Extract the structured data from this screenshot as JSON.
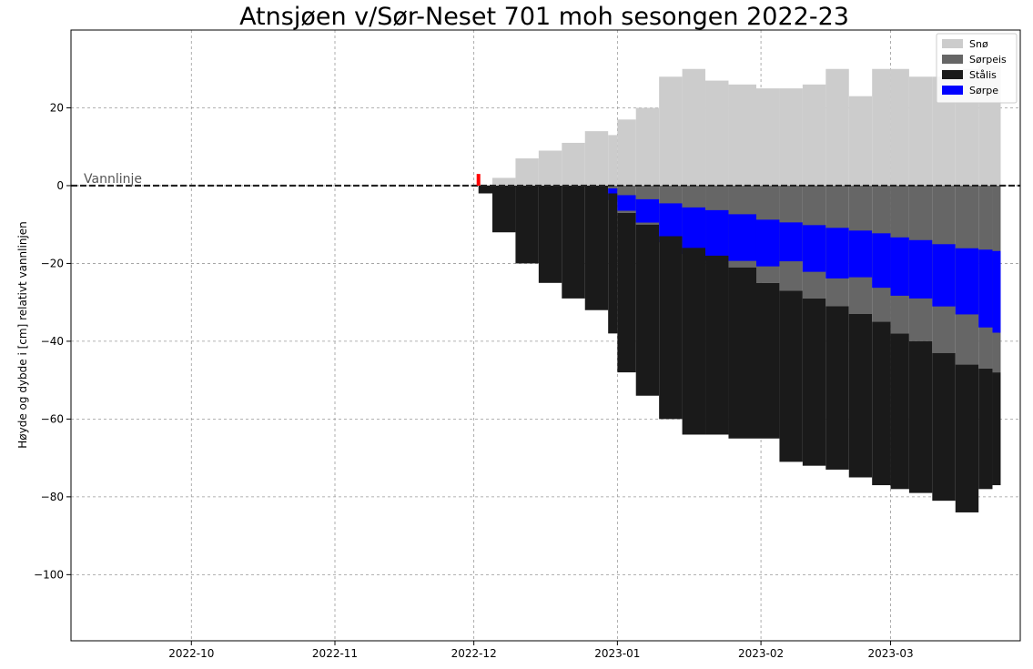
{
  "chart_data": {
    "type": "bar",
    "title": "Atnsjøen v/Sør-Neset 701 moh sesongen 2022-23",
    "xlabel": "",
    "ylabel": "Høyde og dybde i [cm] relativt vannlinjen",
    "water_line_label": "Vannlinje",
    "xlim": [
      "2022-09-05",
      "2023-03-29"
    ],
    "ylim": [
      -117,
      40
    ],
    "grid": true,
    "legend_position": "top-right",
    "x_ticks": [
      "2022-10",
      "2022-11",
      "2022-12",
      "2023-01",
      "2023-02",
      "2023-03"
    ],
    "x_tick_dates": [
      "2022-10-01",
      "2022-11-01",
      "2022-12-01",
      "2023-01-01",
      "2023-02-01",
      "2023-03-01"
    ],
    "y_ticks": [
      20,
      0,
      -20,
      -40,
      -60,
      -80,
      -100
    ],
    "y_tick_labels": [
      "20",
      "0",
      "−20",
      "−40",
      "−60",
      "−80",
      "−100"
    ],
    "colors": {
      "snow": "#cccccc",
      "slush_ice": "#666666",
      "black_ice": "#1a1a1a",
      "slush": "#0000ff",
      "marker": "#ff0000"
    },
    "marker": {
      "date": "2022-12-02",
      "y_range": [
        0,
        3
      ]
    },
    "legend": [
      {
        "label": "Snø",
        "color": "#cccccc"
      },
      {
        "label": "Sørpeis",
        "color": "#666666"
      },
      {
        "label": "Stålis",
        "color": "#1a1a1a"
      },
      {
        "label": "Sørpe",
        "color": "#0000ff"
      }
    ],
    "series": [
      {
        "name": "Snø",
        "color": "#cccccc",
        "dates": [
          "2022-12-02",
          "2022-12-05",
          "2022-12-10",
          "2022-12-15",
          "2022-12-20",
          "2022-12-25",
          "2022-12-30",
          "2023-01-01",
          "2023-01-05",
          "2023-01-10",
          "2023-01-15",
          "2023-01-20",
          "2023-01-25",
          "2023-01-31",
          "2023-02-05",
          "2023-02-10",
          "2023-02-15",
          "2023-02-20",
          "2023-02-25",
          "2023-03-01",
          "2023-03-05",
          "2023-03-10",
          "2023-03-15",
          "2023-03-20",
          "2023-03-23"
        ],
        "values": [
          0,
          2,
          7,
          9,
          11,
          14,
          13,
          17,
          20,
          28,
          30,
          27,
          26,
          25,
          25,
          26,
          30,
          23,
          30,
          30,
          28,
          28,
          30,
          31,
          31
        ]
      },
      {
        "name": "Sørpeis",
        "color": "#666666",
        "dates": [
          "2022-12-02",
          "2022-12-05",
          "2022-12-10",
          "2022-12-15",
          "2022-12-20",
          "2022-12-25",
          "2022-12-30",
          "2023-01-01",
          "2023-01-05",
          "2023-01-10",
          "2023-01-15",
          "2023-01-20",
          "2023-01-25",
          "2023-01-31",
          "2023-02-05",
          "2023-02-10",
          "2023-02-15",
          "2023-02-20",
          "2023-02-25",
          "2023-03-01",
          "2023-03-05",
          "2023-03-10",
          "2023-03-15",
          "2023-03-20",
          "2023-03-23"
        ],
        "values": [
          0,
          0,
          0,
          0,
          0,
          0,
          2,
          7,
          10,
          13,
          16,
          18,
          21,
          25,
          27,
          29,
          31,
          33,
          35,
          38,
          40,
          43,
          46,
          47,
          48
        ]
      },
      {
        "name": "Stålis",
        "color": "#1a1a1a",
        "dates": [
          "2022-12-02",
          "2022-12-05",
          "2022-12-10",
          "2022-12-15",
          "2022-12-20",
          "2022-12-25",
          "2022-12-30",
          "2023-01-01",
          "2023-01-05",
          "2023-01-10",
          "2023-01-15",
          "2023-01-20",
          "2023-01-25",
          "2023-01-31",
          "2023-02-05",
          "2023-02-10",
          "2023-02-15",
          "2023-02-20",
          "2023-02-25",
          "2023-03-01",
          "2023-03-05",
          "2023-03-10",
          "2023-03-15",
          "2023-03-20",
          "2023-03-23"
        ],
        "values": [
          2,
          12,
          20,
          25,
          29,
          32,
          36,
          41,
          44,
          47,
          48,
          46,
          44,
          40,
          44,
          43,
          42,
          42,
          42,
          40,
          39,
          38,
          38,
          31,
          29
        ]
      },
      {
        "name": "Sørpe",
        "color": "#0000ff",
        "dates": [
          "2022-12-02",
          "2022-12-05",
          "2022-12-10",
          "2022-12-15",
          "2022-12-20",
          "2022-12-25",
          "2022-12-30",
          "2023-01-01",
          "2023-01-05",
          "2023-01-10",
          "2023-01-15",
          "2023-01-20",
          "2023-01-25",
          "2023-01-31",
          "2023-02-05",
          "2023-02-10",
          "2023-02-15",
          "2023-02-20",
          "2023-02-25",
          "2023-03-01",
          "2023-03-05",
          "2023-03-10",
          "2023-03-15",
          "2023-03-20",
          "2023-03-23"
        ],
        "values": [
          0,
          0,
          0,
          0,
          0,
          0,
          3,
          4,
          6,
          10,
          12,
          13,
          12,
          12,
          10,
          12,
          13,
          12,
          14,
          15,
          15,
          16,
          17,
          20,
          21
        ]
      }
    ]
  }
}
